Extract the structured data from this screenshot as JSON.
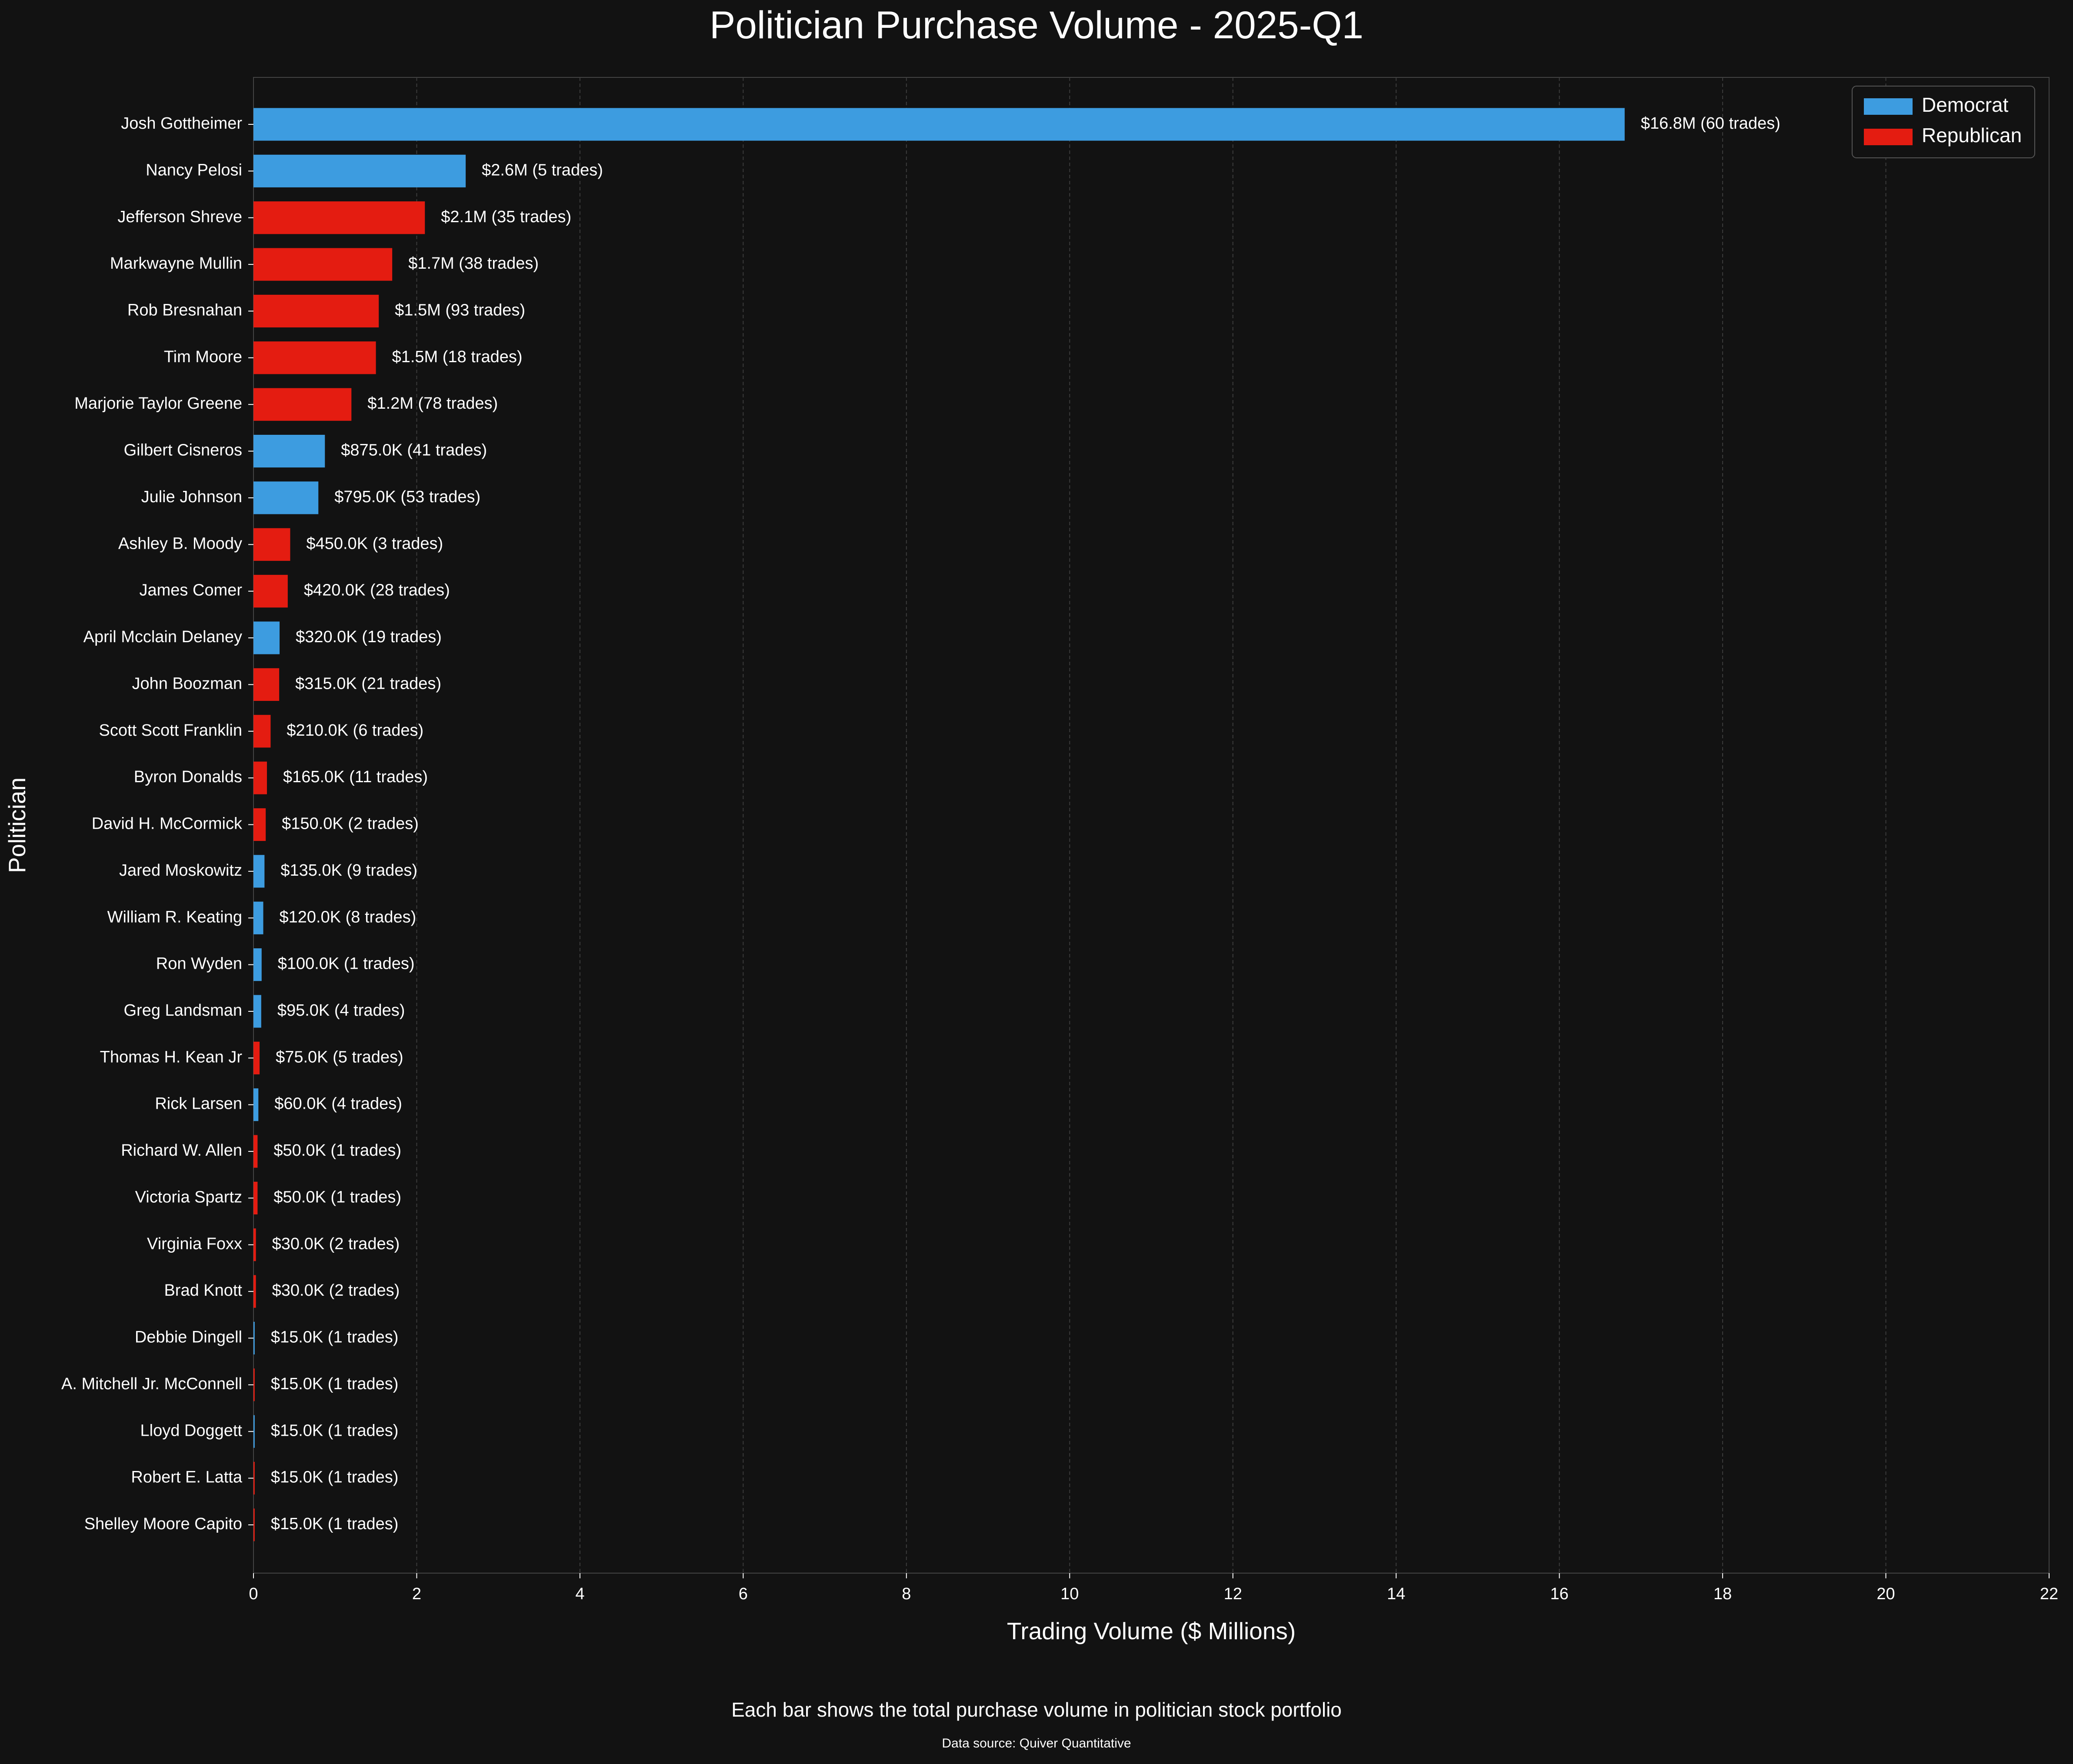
{
  "chart_data": {
    "type": "bar",
    "orientation": "horizontal",
    "title": "Politician Purchase Volume - 2025-Q1",
    "xlabel": "Trading Volume ($ Millions)",
    "ylabel": "Politician",
    "xlim": [
      0,
      22
    ],
    "xticks": [
      0,
      2,
      4,
      6,
      8,
      10,
      12,
      14,
      16,
      18,
      20,
      22
    ],
    "grid": true,
    "legend": {
      "placement": "top-right",
      "entries": [
        "Democrat",
        "Republican"
      ]
    },
    "colors": {
      "Democrat": "#3d9ce0",
      "Republican": "#e41c11"
    },
    "categories": [
      "Josh Gottheimer",
      "Nancy Pelosi",
      "Jefferson Shreve",
      "Markwayne Mullin",
      "Rob Bresnahan",
      "Tim Moore",
      "Marjorie Taylor Greene",
      "Gilbert Cisneros",
      "Julie Johnson",
      "Ashley B. Moody",
      "James Comer",
      "April Mcclain Delaney",
      "John Boozman",
      "Scott Scott Franklin",
      "Byron Donalds",
      "David H. McCormick",
      "Jared Moskowitz",
      "William R. Keating",
      "Ron Wyden",
      "Greg Landsman",
      "Thomas H. Kean Jr",
      "Rick Larsen",
      "Richard W. Allen",
      "Victoria Spartz",
      "Virginia Foxx",
      "Brad Knott",
      "Debbie Dingell",
      "A. Mitchell Jr. McConnell",
      "Lloyd Doggett",
      "Robert E. Latta",
      "Shelley Moore Capito"
    ],
    "values": [
      16.8,
      2.6,
      2.1,
      1.7,
      1.535,
      1.5,
      1.2,
      0.875,
      0.795,
      0.45,
      0.42,
      0.32,
      0.315,
      0.21,
      0.165,
      0.15,
      0.135,
      0.12,
      0.1,
      0.095,
      0.075,
      0.06,
      0.05,
      0.05,
      0.03,
      0.03,
      0.015,
      0.015,
      0.015,
      0.015,
      0.015
    ],
    "party": [
      "Democrat",
      "Democrat",
      "Republican",
      "Republican",
      "Republican",
      "Republican",
      "Republican",
      "Democrat",
      "Democrat",
      "Republican",
      "Republican",
      "Democrat",
      "Republican",
      "Republican",
      "Republican",
      "Republican",
      "Democrat",
      "Democrat",
      "Democrat",
      "Democrat",
      "Republican",
      "Democrat",
      "Republican",
      "Republican",
      "Republican",
      "Republican",
      "Democrat",
      "Republican",
      "Democrat",
      "Republican",
      "Republican"
    ],
    "data_labels": [
      "$16.8M (60 trades)",
      "$2.6M (5 trades)",
      "$2.1M (35 trades)",
      "$1.7M (38 trades)",
      "$1.5M (93 trades)",
      "$1.5M (18 trades)",
      "$1.2M (78 trades)",
      "$875.0K (41 trades)",
      "$795.0K (53 trades)",
      "$450.0K (3 trades)",
      "$420.0K (28 trades)",
      "$320.0K (19 trades)",
      "$315.0K (21 trades)",
      "$210.0K (6 trades)",
      "$165.0K (11 trades)",
      "$150.0K (2 trades)",
      "$135.0K (9 trades)",
      "$120.0K (8 trades)",
      "$100.0K (1 trades)",
      "$95.0K (4 trades)",
      "$75.0K (5 trades)",
      "$60.0K (4 trades)",
      "$50.0K (1 trades)",
      "$50.0K (1 trades)",
      "$30.0K (2 trades)",
      "$30.0K (2 trades)",
      "$15.0K (1 trades)",
      "$15.0K (1 trades)",
      "$15.0K (1 trades)",
      "$15.0K (1 trades)",
      "$15.0K (1 trades)"
    ],
    "caption": "Each bar shows the total purchase volume in politician stock portfolio",
    "source": "Data source: Quiver Quantitative"
  }
}
